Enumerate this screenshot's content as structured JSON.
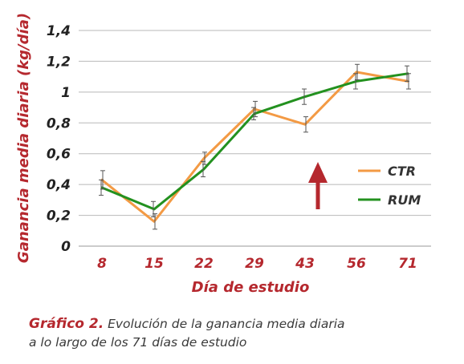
{
  "colors": {
    "ctr": "#f39a44",
    "rum": "#23911f",
    "accent_red": "#b5282e",
    "grid": "#b9b9b9",
    "errorbar": "#555555"
  },
  "chart_data": {
    "type": "line",
    "categories": [
      "8",
      "15",
      "22",
      "29",
      "43",
      "56",
      "71"
    ],
    "ylabel": "Ganancia media diaria (kg/día)",
    "xlabel": "Día de estudio",
    "ylim": [
      0,
      1.4
    ],
    "ytick_labels": [
      "0",
      "0,2",
      "0,4",
      "0,6",
      "0,8",
      "1",
      "1,2",
      "1,4"
    ],
    "grid": true,
    "legend_position": "right",
    "series": [
      {
        "name": "CTR",
        "color": "#f39a44",
        "values": [
          0.43,
          0.16,
          0.57,
          0.89,
          0.79,
          1.13,
          1.07
        ],
        "errors": [
          0.06,
          0.05,
          0.04,
          0.05,
          0.05,
          0.05,
          0.05
        ]
      },
      {
        "name": "RUM",
        "color": "#23911f",
        "values": [
          0.38,
          0.24,
          0.5,
          0.86,
          0.97,
          1.07,
          1.12
        ],
        "errors": [
          0.05,
          0.05,
          0.05,
          0.04,
          0.05,
          0.05,
          0.05
        ]
      }
    ],
    "annotation": {
      "type": "arrow",
      "direction": "up",
      "color": "#b5282e",
      "between": [
        "43",
        "56"
      ]
    }
  },
  "caption": {
    "label": "Gráfico 2.",
    "line1": "Evolución de la ganancia media diaria",
    "line2": "a lo largo de los 71 días de estudio"
  }
}
